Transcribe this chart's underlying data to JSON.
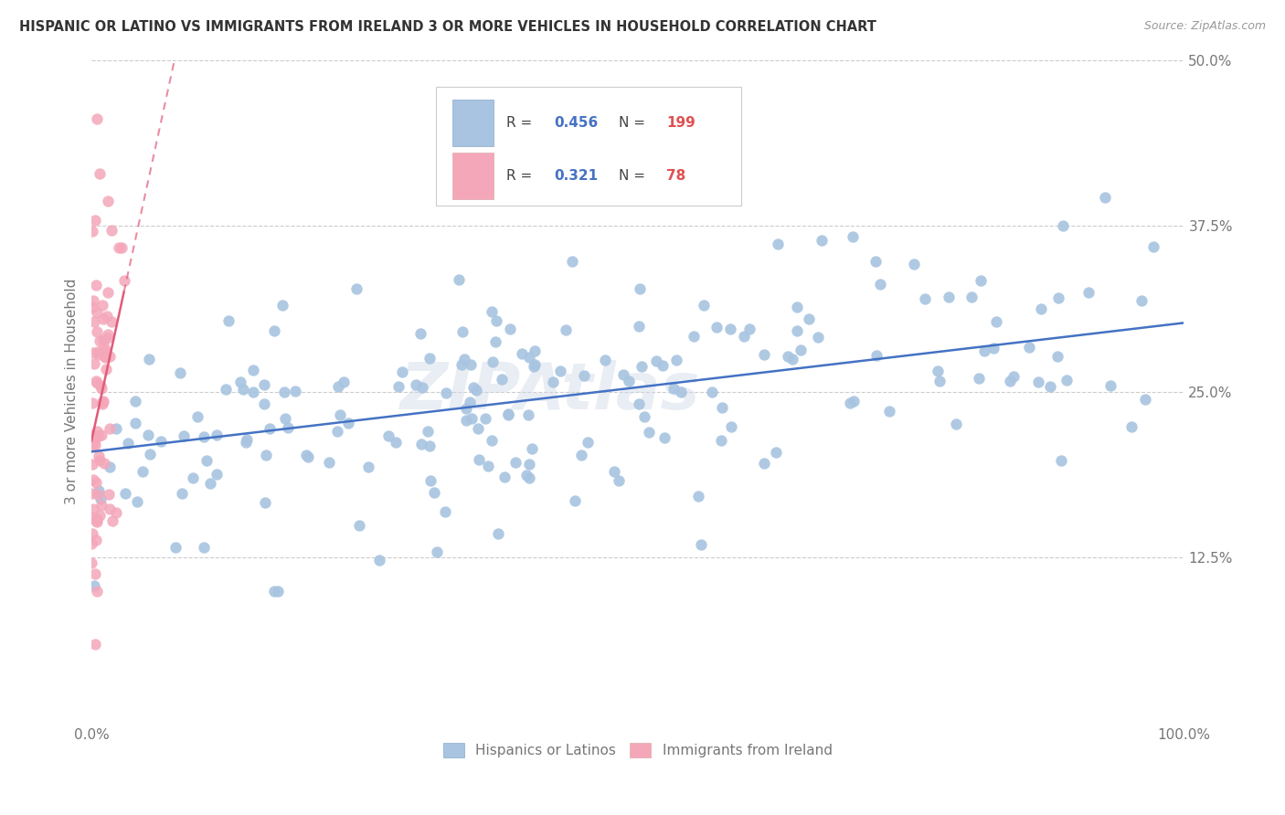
{
  "title": "HISPANIC OR LATINO VS IMMIGRANTS FROM IRELAND 3 OR MORE VEHICLES IN HOUSEHOLD CORRELATION CHART",
  "source": "Source: ZipAtlas.com",
  "ylabel": "3 or more Vehicles in Household",
  "xlim": [
    0.0,
    1.0
  ],
  "ylim": [
    0.0,
    0.5
  ],
  "blue_R": 0.456,
  "blue_N": 199,
  "pink_R": 0.321,
  "pink_N": 78,
  "blue_color": "#a8c4e0",
  "pink_color": "#f4a7b9",
  "blue_line_color": "#4472c4",
  "pink_line_color": "#e05c7a",
  "legend_blue_label": "Hispanics or Latinos",
  "legend_pink_label": "Immigrants from Ireland",
  "watermark": "ZIPAtlas",
  "tick_label_color": "#4472c4",
  "N_label_color": "#e05050",
  "label_color": "#777777"
}
